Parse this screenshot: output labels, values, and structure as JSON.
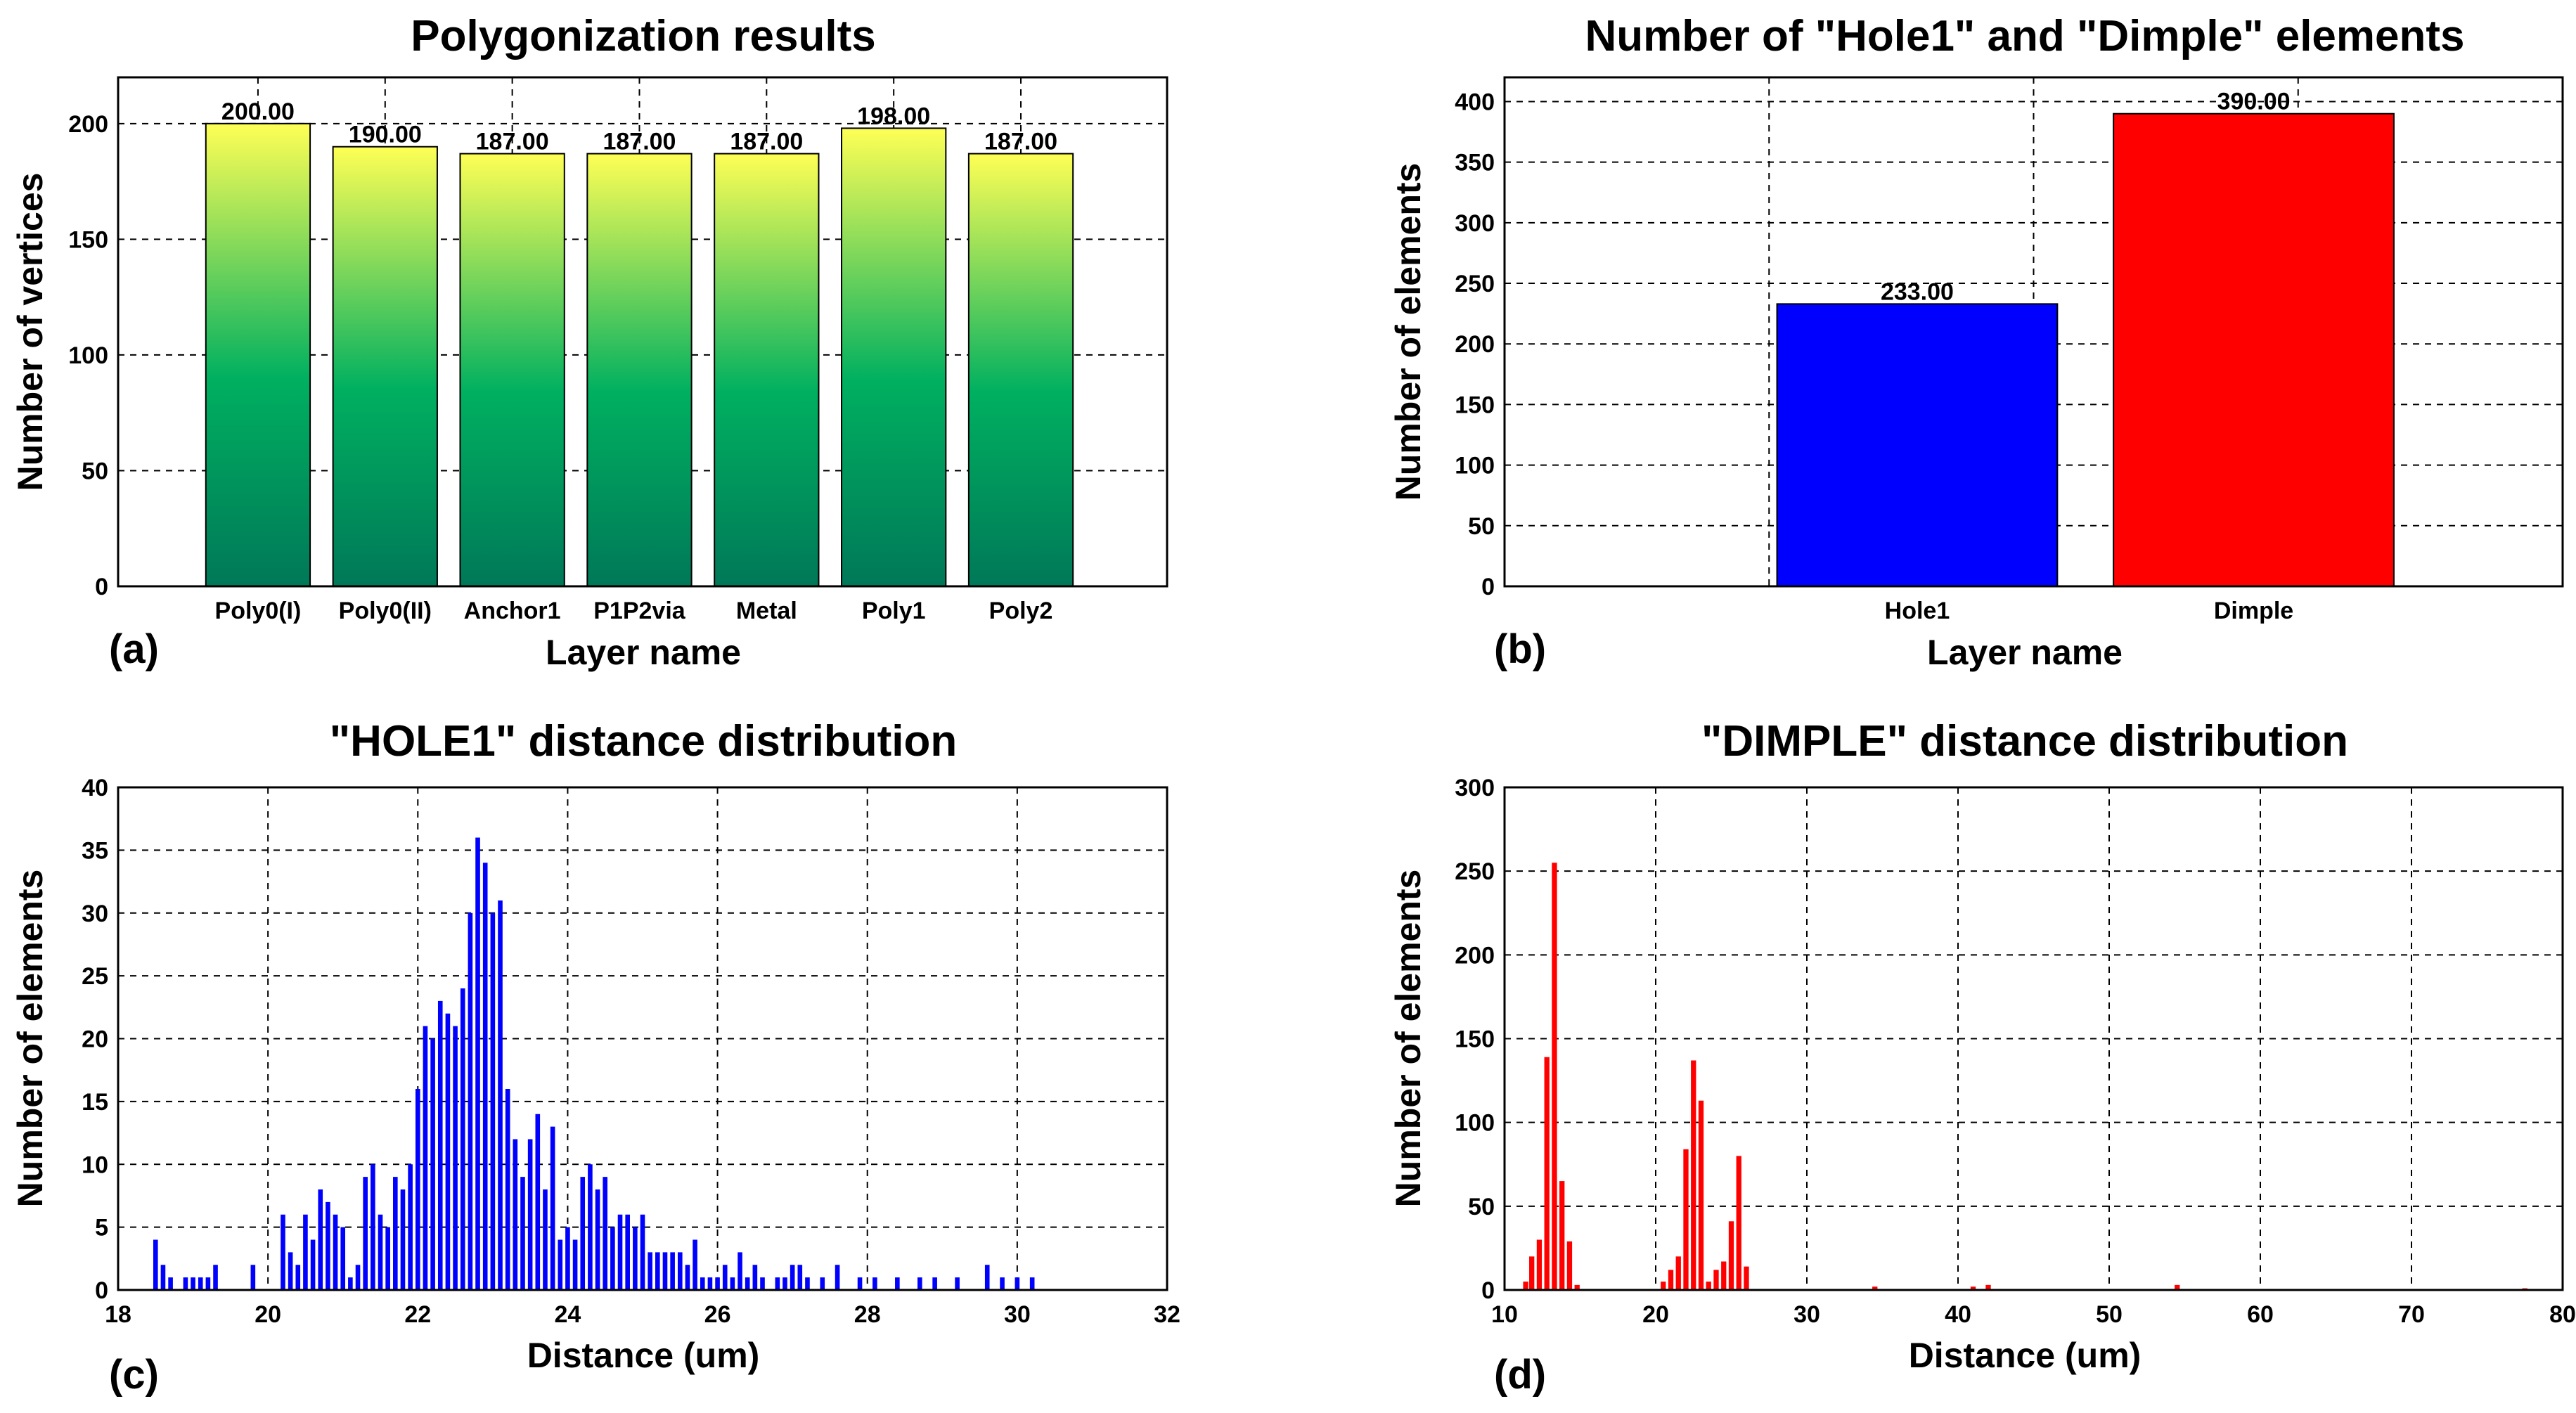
{
  "figure": {
    "panels": [
      {
        "key": "a",
        "label": "(a)"
      },
      {
        "key": "b",
        "label": "(b)"
      },
      {
        "key": "c",
        "label": "(c)"
      },
      {
        "key": "d",
        "label": "(d)"
      }
    ]
  },
  "chart_data": [
    {
      "type": "bar",
      "title": "Polygonization results",
      "xlabel": "Layer name",
      "ylabel": "Number of vertices",
      "categories": [
        "Poly0(I)",
        "Poly0(II)",
        "Anchor1",
        "P1P2via",
        "Metal",
        "Poly1",
        "Poly2"
      ],
      "values": [
        200,
        190,
        187,
        187,
        187,
        198,
        187
      ],
      "data_labels": [
        "200.00",
        "190.00",
        "187.00",
        "187.00",
        "187.00",
        "198.00",
        "187.00"
      ],
      "ylim": [
        0,
        220
      ],
      "yticks": [
        0,
        50,
        100,
        150,
        200
      ],
      "grid": true,
      "colors": {
        "top": "#ffff55",
        "mid": "#00b060",
        "bottom": "#008060"
      }
    },
    {
      "type": "bar",
      "title": "Number of \"Hole1\" and \"Dimple\" elements",
      "xlabel": "Layer name",
      "ylabel": "Number of elements",
      "categories": [
        "Hole1",
        "Dimple"
      ],
      "values": [
        233,
        390
      ],
      "data_labels": [
        "233.00",
        "390.00"
      ],
      "ylim": [
        0,
        420
      ],
      "yticks": [
        0,
        50,
        100,
        150,
        200,
        250,
        300,
        350,
        400
      ],
      "grid": true,
      "colors": [
        "#0000ff",
        "#ff0000"
      ]
    },
    {
      "type": "bar",
      "title": "\"HOLE1\" distance distribution",
      "xlabel": "Distance (um)",
      "ylabel": "Number of elements",
      "xlim": [
        18,
        32
      ],
      "ylim": [
        0,
        40
      ],
      "xticks": [
        18,
        20,
        22,
        24,
        26,
        28,
        30,
        32
      ],
      "yticks": [
        0,
        5,
        10,
        15,
        20,
        25,
        30,
        35,
        40
      ],
      "grid": true,
      "color": "#0000ff",
      "x": [
        18.5,
        18.6,
        18.7,
        18.9,
        19.0,
        19.1,
        19.2,
        19.3,
        19.8,
        20.2,
        20.3,
        20.4,
        20.5,
        20.6,
        20.7,
        20.8,
        20.9,
        21.0,
        21.1,
        21.2,
        21.3,
        21.4,
        21.5,
        21.6,
        21.7,
        21.8,
        21.9,
        22.0,
        22.1,
        22.2,
        22.3,
        22.4,
        22.5,
        22.6,
        22.7,
        22.8,
        22.9,
        23.0,
        23.1,
        23.2,
        23.3,
        23.4,
        23.5,
        23.6,
        23.7,
        23.8,
        23.9,
        24.0,
        24.1,
        24.2,
        24.3,
        24.4,
        24.5,
        24.6,
        24.7,
        24.8,
        24.9,
        25.0,
        25.1,
        25.2,
        25.3,
        25.4,
        25.5,
        25.6,
        25.7,
        25.8,
        25.9,
        26.0,
        26.1,
        26.2,
        26.3,
        26.4,
        26.5,
        26.6,
        26.8,
        26.9,
        27.0,
        27.1,
        27.2,
        27.4,
        27.6,
        27.9,
        28.1,
        28.4,
        28.7,
        28.9,
        29.2,
        29.6,
        29.8,
        30.0,
        30.2
      ],
      "values": [
        4,
        2,
        1,
        1,
        1,
        1,
        1,
        2,
        2,
        6,
        3,
        2,
        6,
        4,
        8,
        7,
        6,
        5,
        1,
        2,
        9,
        10,
        6,
        5,
        9,
        8,
        10,
        16,
        21,
        20,
        23,
        22,
        21,
        24,
        30,
        36,
        34,
        30,
        31,
        16,
        12,
        9,
        12,
        14,
        8,
        13,
        4,
        5,
        4,
        9,
        10,
        8,
        9,
        5,
        6,
        6,
        5,
        6,
        3,
        3,
        3,
        3,
        3,
        2,
        4,
        1,
        1,
        1,
        2,
        1,
        3,
        1,
        2,
        1,
        1,
        1,
        2,
        2,
        1,
        1,
        2,
        1,
        1,
        1,
        1,
        1,
        1,
        2,
        1,
        1,
        1
      ],
      "note": "Left axis ticks 0-40 step 5; bins approximately 0.1 um wide"
    },
    {
      "type": "bar",
      "title": "\"DIMPLE\" distance distribution",
      "xlabel": "Distance (um)",
      "ylabel": "Number of elements",
      "xlim": [
        10,
        80
      ],
      "ylim": [
        0,
        300
      ],
      "xticks": [
        10,
        20,
        30,
        40,
        50,
        60,
        70,
        80
      ],
      "yticks": [
        0,
        50,
        100,
        150,
        200,
        250,
        300
      ],
      "grid": true,
      "color": "#ff0000",
      "x": [
        11.4,
        11.8,
        12.3,
        12.8,
        13.3,
        13.8,
        14.3,
        14.8,
        15.3,
        20.5,
        21.0,
        21.5,
        22.0,
        22.5,
        23.0,
        23.5,
        24.0,
        24.5,
        25.0,
        25.5,
        26.0,
        26.5,
        27.0,
        34.5,
        41.0,
        42.0,
        54.5,
        77.5
      ],
      "values": [
        5,
        20,
        30,
        139,
        255,
        65,
        29,
        3,
        0,
        5,
        12,
        20,
        84,
        137,
        113,
        5,
        12,
        17,
        41,
        80,
        14,
        0,
        0,
        2,
        2,
        3,
        3,
        1
      ]
    }
  ]
}
